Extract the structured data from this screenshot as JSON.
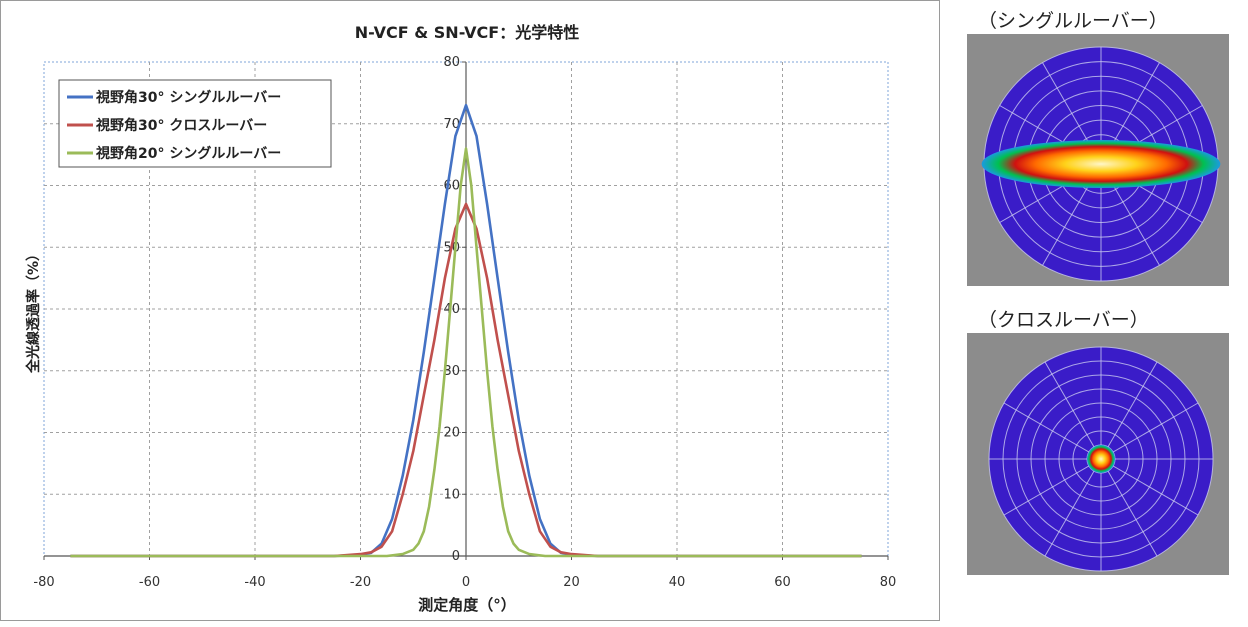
{
  "chart_data": {
    "type": "line",
    "title": "N-VCF & SN-VCF：光学特性",
    "xlabel": "測定角度（°）",
    "ylabel": "全光線透過率（%）",
    "xlim": [
      -80,
      80
    ],
    "ylim": [
      0,
      80
    ],
    "xticks": [
      -80,
      -60,
      -40,
      -20,
      0,
      20,
      40,
      60,
      80
    ],
    "yticks": [
      0,
      10,
      20,
      30,
      40,
      50,
      60,
      70,
      80
    ],
    "grid": true,
    "legend_position": "top-left",
    "series": [
      {
        "name": "視野角30° シングルルーバー",
        "color": "#4472c4",
        "peak": 73,
        "spread": 7.0,
        "x": [
          -75,
          -25,
          -20,
          -18,
          -16,
          -14,
          -12,
          -10,
          -8,
          -6,
          -4,
          -2,
          0,
          2,
          4,
          6,
          8,
          10,
          12,
          14,
          16,
          18,
          20,
          25,
          75
        ],
        "y": [
          0,
          0,
          0.2,
          0.5,
          2,
          6,
          13,
          22,
          33,
          45,
          57,
          68,
          73,
          68,
          57,
          45,
          33,
          22,
          13,
          6,
          2,
          0.5,
          0.2,
          0,
          0
        ]
      },
      {
        "name": "視野角30° クロスルーバー",
        "color": "#c0504d",
        "peak": 57,
        "spread": 7.2,
        "x": [
          -75,
          -25,
          -20,
          -18,
          -16,
          -14,
          -12,
          -10,
          -8,
          -6,
          -4,
          -2,
          0,
          2,
          4,
          6,
          8,
          10,
          12,
          14,
          16,
          18,
          20,
          25,
          75
        ],
        "y": [
          0,
          0,
          0.3,
          0.6,
          1.5,
          4,
          10,
          17,
          26,
          35,
          45,
          53,
          57,
          53,
          45,
          35,
          26,
          17,
          10,
          4,
          1.5,
          0.6,
          0.3,
          0,
          0
        ]
      },
      {
        "name": "視野角20° シングルルーバー",
        "color": "#9bbb59",
        "peak": 66,
        "spread": 4.2,
        "x": [
          -75,
          -15,
          -12,
          -10,
          -9,
          -8,
          -7,
          -6,
          -5,
          -4,
          -3,
          -2,
          -1,
          0,
          1,
          2,
          3,
          4,
          5,
          6,
          7,
          8,
          9,
          10,
          12,
          15,
          75
        ],
        "y": [
          0,
          0,
          0.3,
          1,
          2,
          4,
          8,
          14,
          21,
          30,
          40,
          50,
          60,
          66,
          60,
          50,
          40,
          30,
          21,
          14,
          8,
          4,
          2,
          1,
          0.3,
          0,
          0
        ]
      }
    ]
  },
  "images": [
    {
      "caption": "（シングルルーバー）",
      "type": "horizontal-band"
    },
    {
      "caption": "（クロスルーバー）",
      "type": "center-spot"
    }
  ]
}
